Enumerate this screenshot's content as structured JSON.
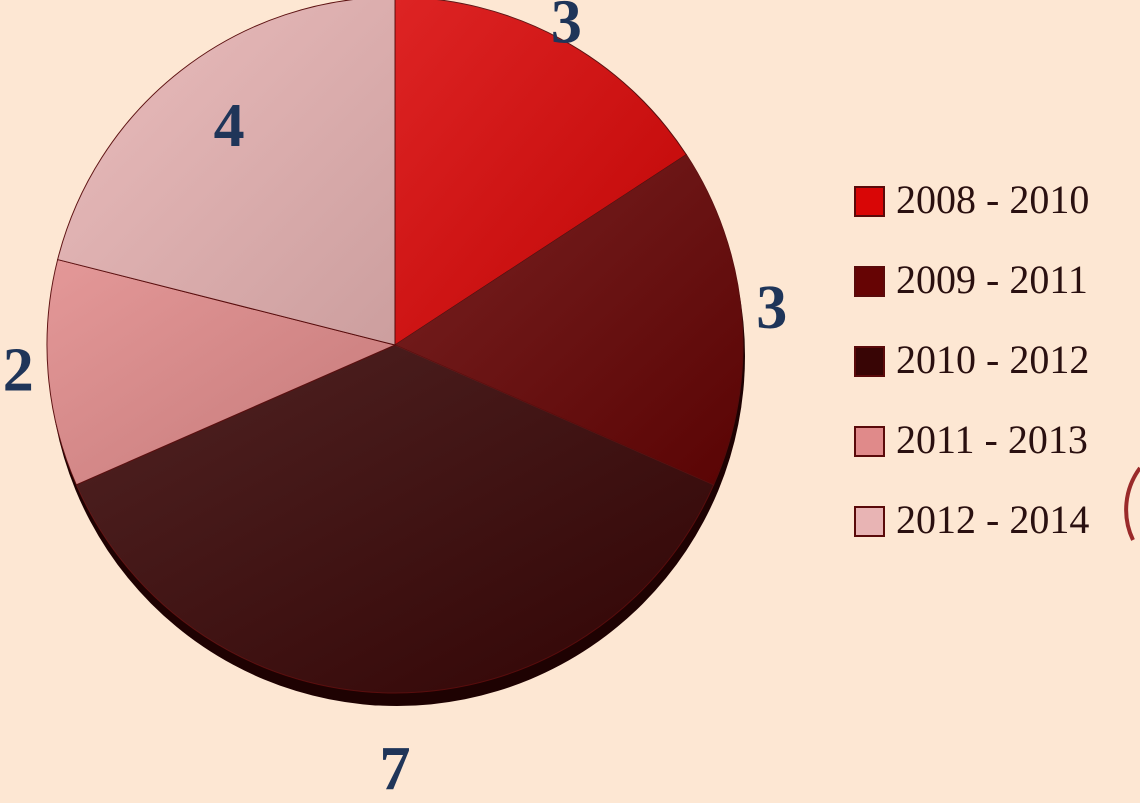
{
  "chart_data": {
    "type": "pie",
    "categories": [
      "2008 - 2010",
      "2009 - 2011",
      "2010 - 2012",
      "2011 - 2013",
      "2012 - 2014"
    ],
    "values": [
      3,
      3,
      7,
      2,
      4
    ],
    "colors": [
      "#d90606",
      "#660404",
      "#380505",
      "#e08a8a",
      "#e8b4b4"
    ],
    "legend": "right"
  }
}
